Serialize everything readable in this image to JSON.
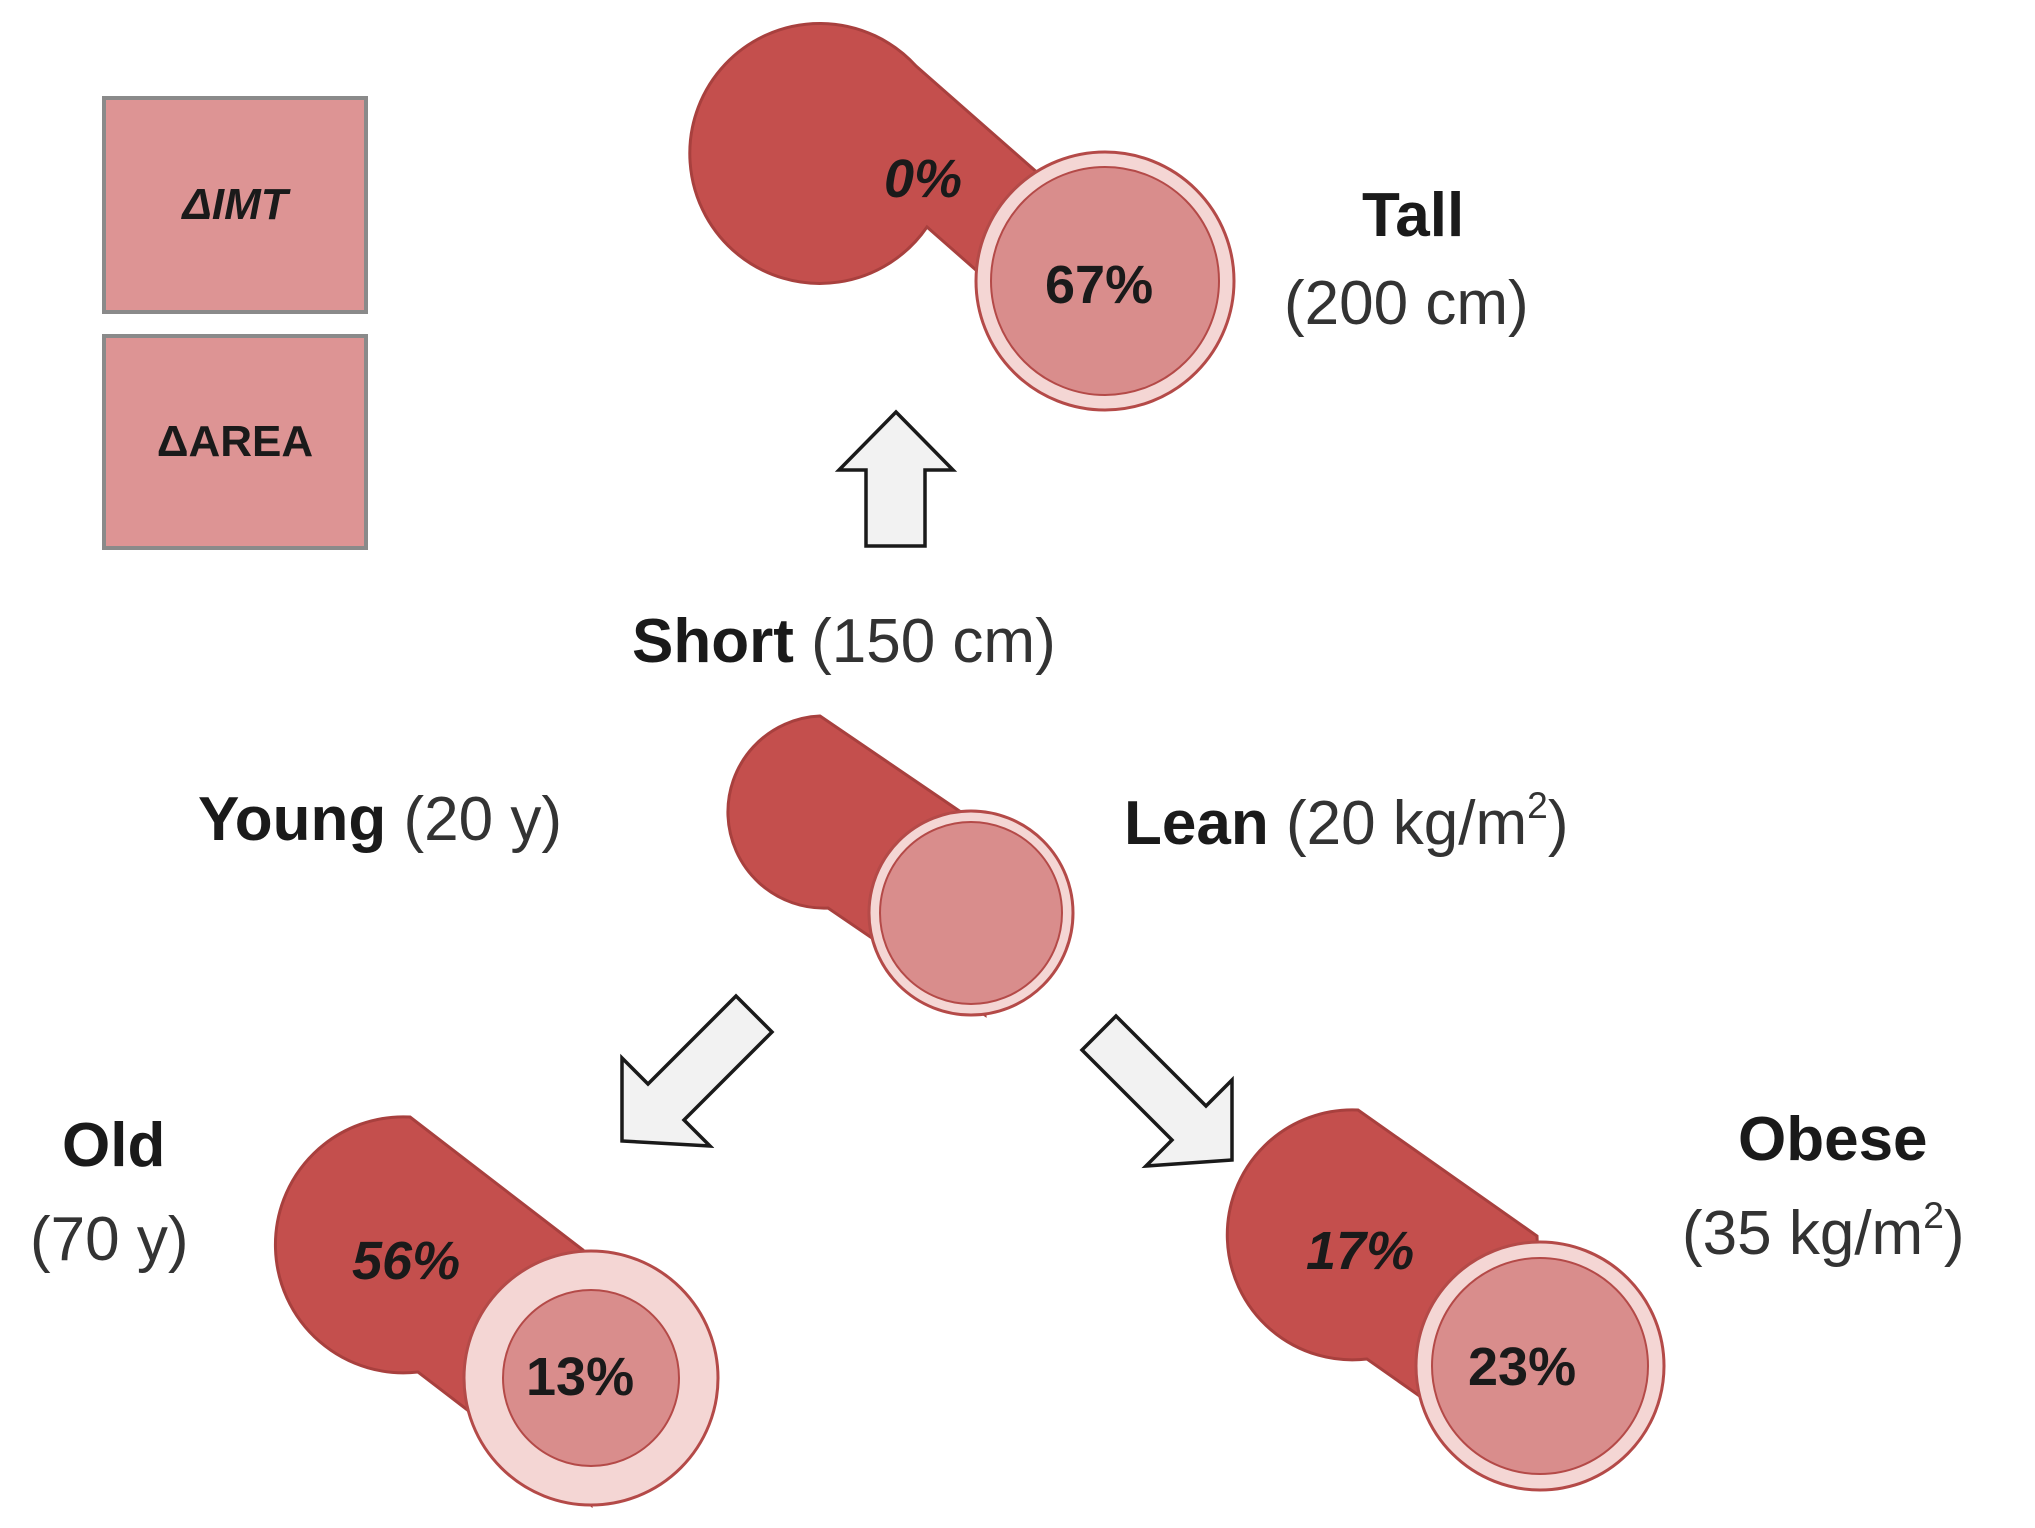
{
  "legend": {
    "imt_label": "ΔIMT",
    "area_label": "ΔAREA"
  },
  "center": {
    "height_label": "Short",
    "height_value": "(150 cm)",
    "age_label": "Young",
    "age_value": "(20 y)",
    "bmi_label": "Lean",
    "bmi_value_prefix": "(20 kg/m",
    "bmi_value_sup": "2",
    "bmi_value_suffix": ")"
  },
  "tall": {
    "label": "Tall",
    "value": "(200 cm)",
    "imt_pct": "0%",
    "area_pct": "67%"
  },
  "old": {
    "label": "Old",
    "value": "(70 y)",
    "imt_pct": "56%",
    "area_pct": "13%"
  },
  "obese": {
    "label": "Obese",
    "value_prefix": "(35 kg/m",
    "value_sup": "2",
    "value_suffix": ")",
    "imt_pct": "17%",
    "area_pct": "23%"
  },
  "colors": {
    "vessel_wall": "#c44f4d",
    "vessel_dark": "#a8403e",
    "lumen": "#d98d8c",
    "ring": "#f4d6d4",
    "legend_fill": "#dd9494",
    "arrow_fill": "#f2f2f2"
  },
  "icons": {
    "up_arrow": "arrow-up-icon",
    "left_down_arrow": "arrow-down-left-icon",
    "right_down_arrow": "arrow-down-right-icon"
  }
}
